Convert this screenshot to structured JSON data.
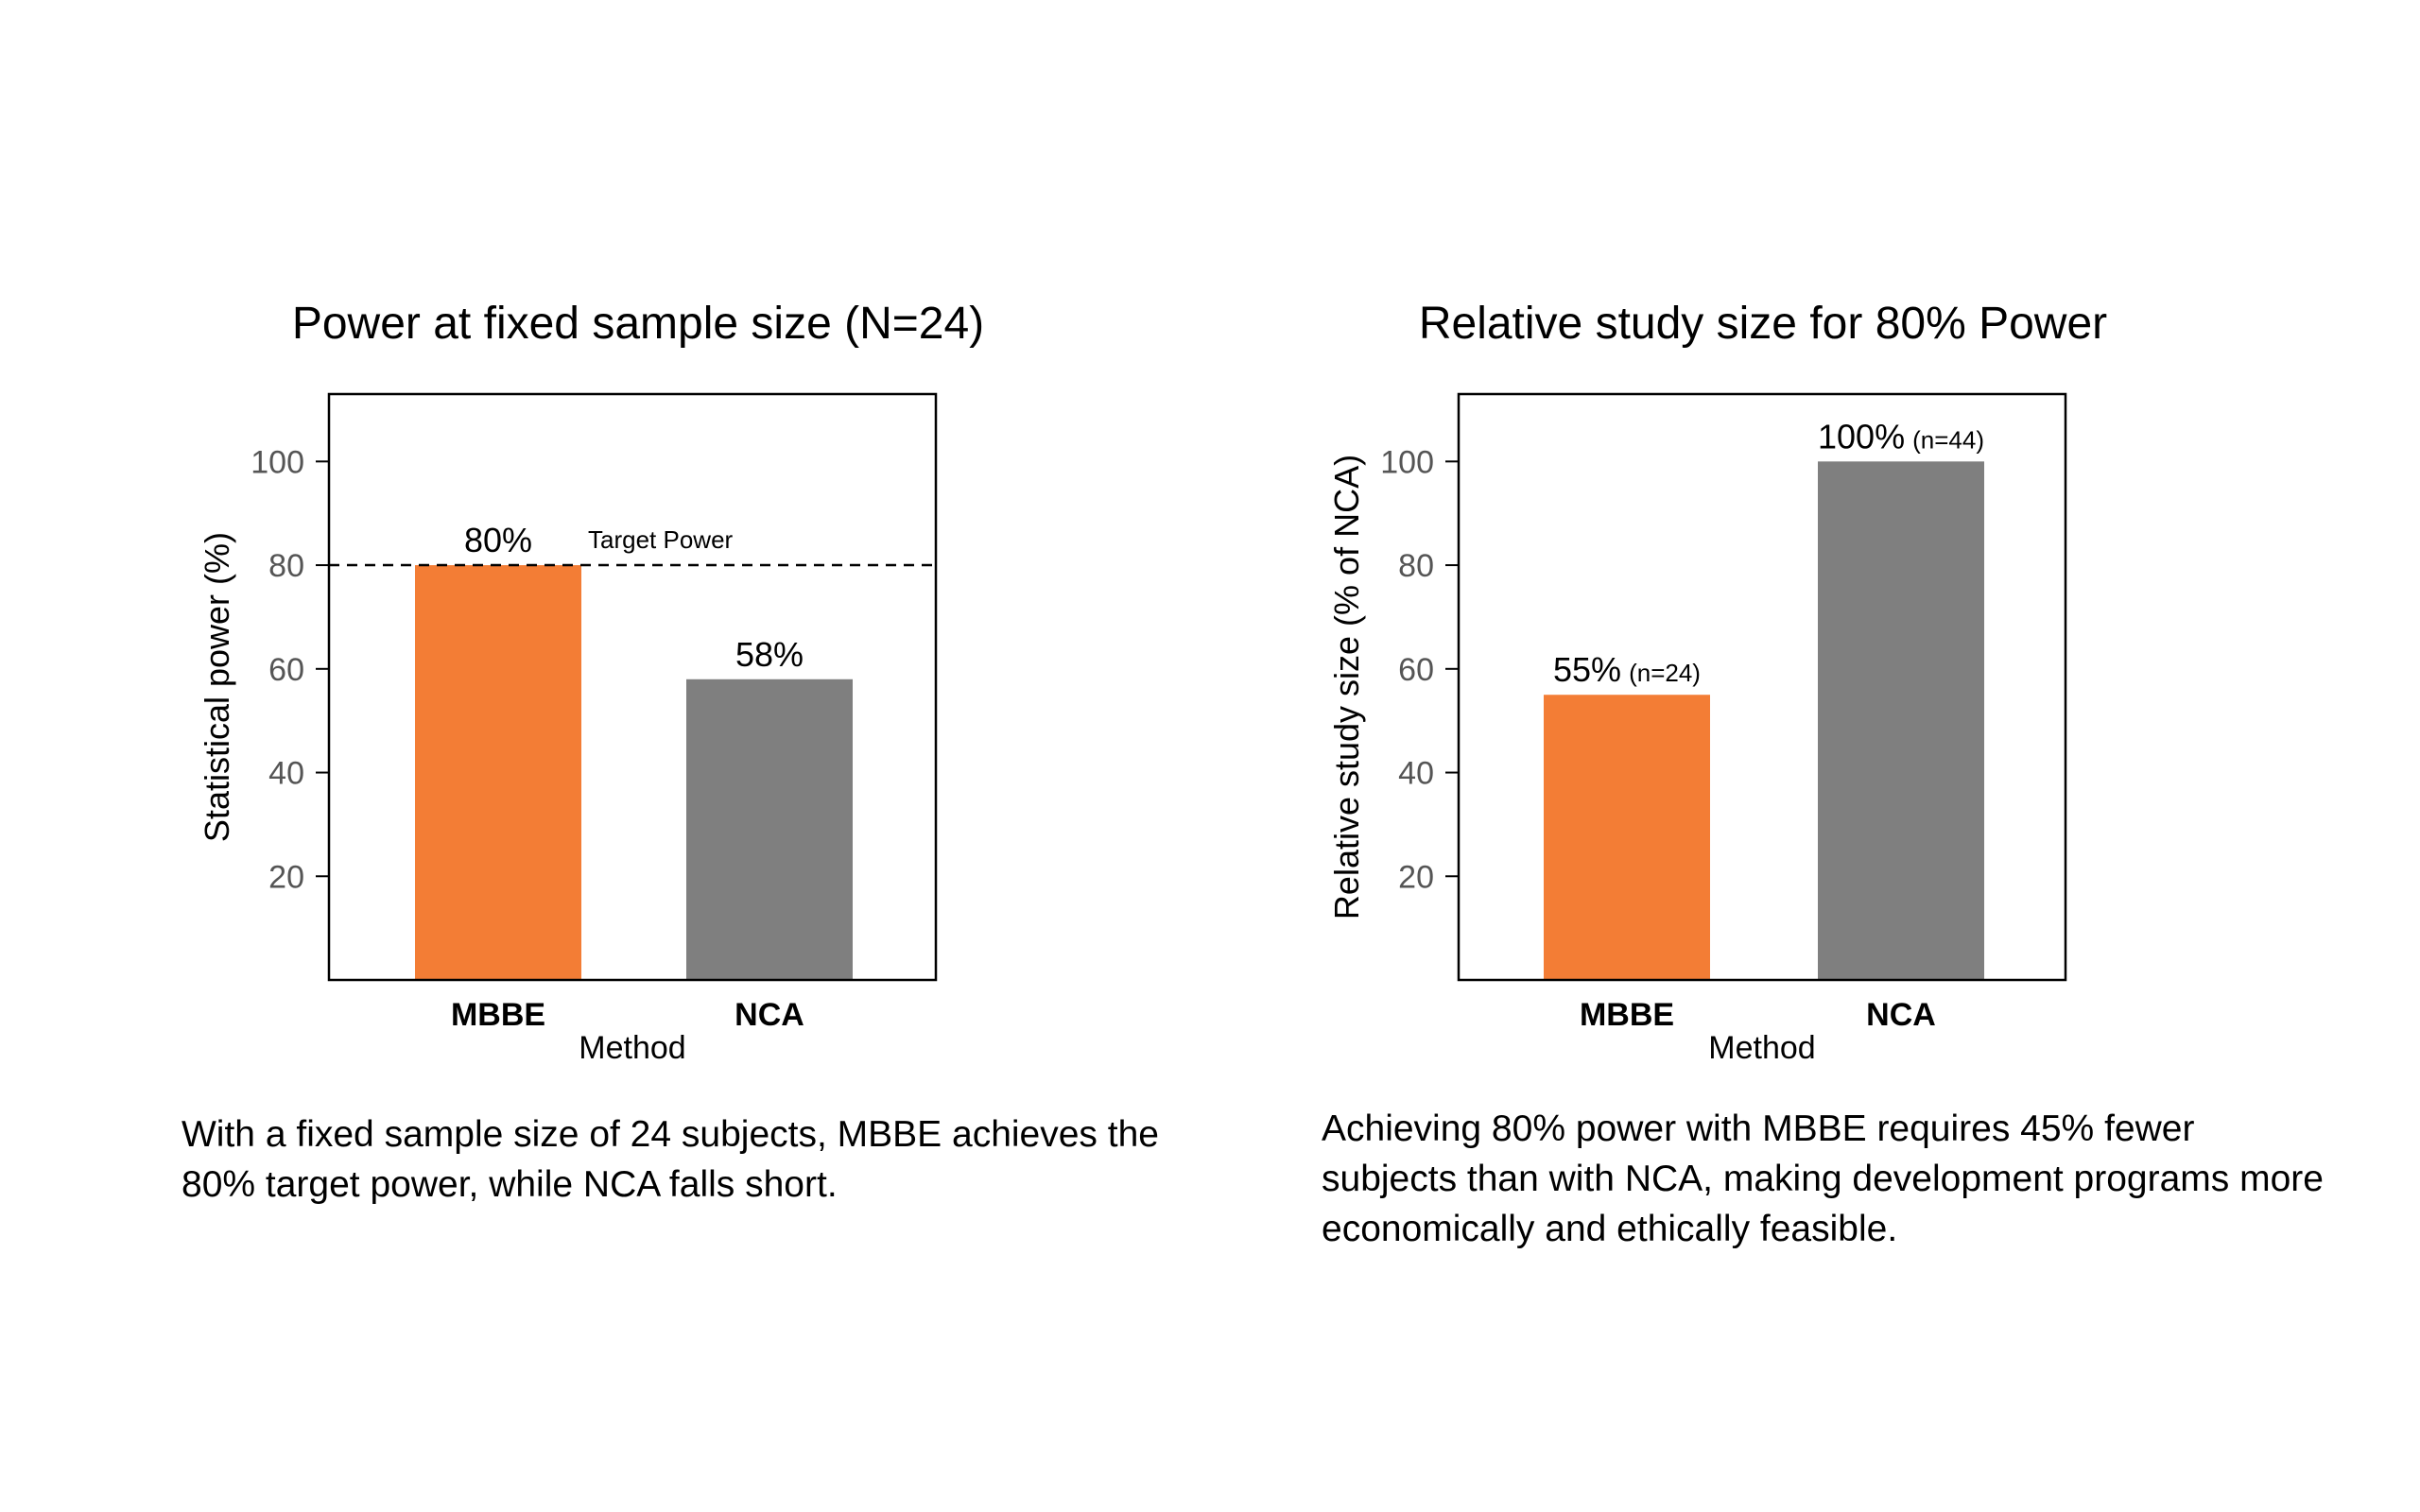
{
  "chart_data": [
    {
      "type": "bar",
      "title": "Power at fixed sample size (N=24)",
      "xlabel": "Method",
      "ylabel": "Statistical power (%)",
      "categories": [
        "MBBE",
        "NCA"
      ],
      "values": [
        80,
        58
      ],
      "data_labels": [
        "80%",
        "58%"
      ],
      "data_label_notes": [
        "",
        ""
      ],
      "colors": [
        "#F37D35",
        "#7F7F7F"
      ],
      "ylim": [
        0,
        113
      ],
      "yticks": [
        20,
        40,
        60,
        80,
        100
      ],
      "reference_line": {
        "value": 80,
        "label": "Target Power",
        "style": "dashed"
      }
    },
    {
      "type": "bar",
      "title": "Relative study size for 80% Power",
      "xlabel": "Method",
      "ylabel": "Relative study size (% of NCA)",
      "categories": [
        "MBBE",
        "NCA"
      ],
      "values": [
        55,
        100
      ],
      "data_labels": [
        "55%",
        "100%"
      ],
      "data_label_notes": [
        "(n=24)",
        "(n=44)"
      ],
      "colors": [
        "#F37D35",
        "#7F7F7F"
      ],
      "ylim": [
        0,
        113
      ],
      "yticks": [
        20,
        40,
        60,
        80,
        100
      ]
    }
  ],
  "captions": {
    "left": "With a fixed sample size of 24 subjects, MBBE achieves the 80% target power, while NCA falls short.",
    "right": "Achieving 80% power with MBBE requires 45% fewer subjects than with NCA, making development programs more economically and ethically feasible."
  }
}
